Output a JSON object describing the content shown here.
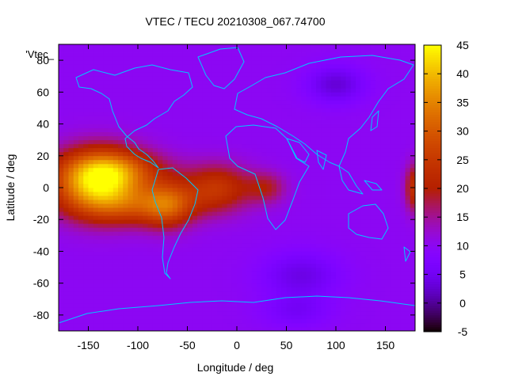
{
  "chart_data": {
    "type": "heatmap",
    "title": "VTEC / TECU 20210308_067.74700",
    "xlabel": "Longitude / deg",
    "ylabel": "Latitude / deg",
    "key_label": "'Vtec_",
    "xlim": [
      -180,
      180
    ],
    "ylim": [
      -90,
      90
    ],
    "x_ticks": [
      -150,
      -100,
      -50,
      0,
      50,
      100,
      150
    ],
    "y_ticks": [
      -80,
      -60,
      -40,
      -20,
      0,
      20,
      40,
      60,
      80
    ],
    "colorbar": {
      "min": -5,
      "max": 45,
      "ticks": [
        -5,
        0,
        5,
        10,
        15,
        20,
        25,
        30,
        35,
        40,
        45
      ],
      "palette": "gnuplot rgbformulae 7,5,15 (black-blue-purple-red-orange-yellow)"
    },
    "background_value": 10,
    "features": [
      {
        "name": "equatorial-anomaly-west-pacific",
        "lon": -140,
        "lat": 3,
        "value": 32,
        "lon_sigma": 45,
        "lat_sigma": 20
      },
      {
        "name": "northern-crest",
        "lon": -120,
        "lat": 12,
        "value": 10,
        "lon_sigma": 50,
        "lat_sigma": 12
      },
      {
        "name": "southern-crest",
        "lon": -95,
        "lat": -12,
        "value": 10,
        "lon_sigma": 55,
        "lat_sigma": 12
      },
      {
        "name": "south-america-peak",
        "lon": -70,
        "lat": -10,
        "value": 14,
        "lon_sigma": 25,
        "lat_sigma": 15
      },
      {
        "name": "atlantic-extension",
        "lon": -20,
        "lat": 0,
        "value": 14,
        "lon_sigma": 35,
        "lat_sigma": 15
      },
      {
        "name": "africa-enhancement",
        "lon": 30,
        "lat": 0,
        "value": 8,
        "lon_sigma": 20,
        "lat_sigma": 10
      },
      {
        "name": "east-edge-enhancement",
        "lon": 180,
        "lat": 0,
        "value": 14,
        "lon_sigma": 10,
        "lat_sigma": 15
      },
      {
        "name": "north-siberia-depletion",
        "lon": 100,
        "lat": 65,
        "value": -7,
        "lon_sigma": 30,
        "lat_sigma": 12
      },
      {
        "name": "south-indian-ocean-depletion",
        "lon": 65,
        "lat": -55,
        "value": -6,
        "lon_sigma": 40,
        "lat_sigma": 15
      },
      {
        "name": "southern-antarctic-depletion",
        "lon": 60,
        "lat": -78,
        "value": -4,
        "lon_sigma": 35,
        "lat_sigma": 10
      }
    ],
    "overlay": "continent outlines (cyan)",
    "colors": {
      "coastline": "#00c8ff",
      "axis": "#000000"
    }
  }
}
